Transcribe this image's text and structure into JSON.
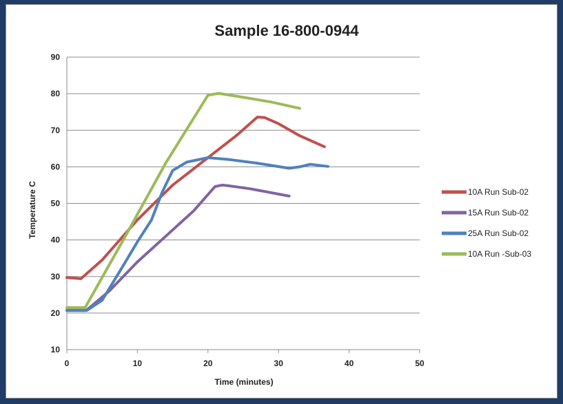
{
  "chart_data": {
    "type": "line",
    "title": "Sample 16-800-0944",
    "xlabel": "Time (minutes)",
    "ylabel": "Temperature C",
    "xlim": [
      0,
      50
    ],
    "ylim": [
      10,
      90
    ],
    "xticks": [
      "0",
      "10",
      "20",
      "30",
      "40",
      "50"
    ],
    "yticks": [
      "10",
      "20",
      "30",
      "40",
      "50",
      "60",
      "70",
      "80",
      "90"
    ],
    "grid": "horizontal",
    "legend_position": "right",
    "series": [
      {
        "name": "10A Run Sub-02",
        "color": "#c0504d",
        "points": [
          [
            0,
            29.7
          ],
          [
            2,
            29.4
          ],
          [
            5,
            34.5
          ],
          [
            10,
            45.5
          ],
          [
            15,
            55
          ],
          [
            20,
            62.5
          ],
          [
            24,
            68.5
          ],
          [
            27,
            73.6
          ],
          [
            28,
            73.5
          ],
          [
            30,
            71.8
          ],
          [
            33,
            68.5
          ],
          [
            36.5,
            65.5
          ]
        ]
      },
      {
        "name": "15A Run Sub-02",
        "color": "#8064a2",
        "points": [
          [
            0,
            20.8
          ],
          [
            2.8,
            20.8
          ],
          [
            6,
            26
          ],
          [
            10,
            34
          ],
          [
            14,
            41
          ],
          [
            18,
            48
          ],
          [
            21,
            54.6
          ],
          [
            22,
            55
          ],
          [
            23,
            54.8
          ],
          [
            26,
            54
          ],
          [
            31.5,
            52
          ]
        ]
      },
      {
        "name": "25A Run Sub-02",
        "color": "#4f81bd",
        "points": [
          [
            0,
            20.7
          ],
          [
            2.8,
            20.7
          ],
          [
            5,
            23.5
          ],
          [
            8,
            33
          ],
          [
            10,
            39.5
          ],
          [
            12,
            45.5
          ],
          [
            13.5,
            53
          ],
          [
            15,
            59
          ],
          [
            17,
            61.3
          ],
          [
            20,
            62.5
          ],
          [
            23,
            62
          ],
          [
            27,
            61
          ],
          [
            31.5,
            59.6
          ],
          [
            33,
            60
          ],
          [
            34.5,
            60.7
          ],
          [
            37,
            60.1
          ]
        ]
      },
      {
        "name": "10A Run -Sub-03",
        "color": "#9bbb59",
        "points": [
          [
            0,
            21.5
          ],
          [
            2.6,
            21.5
          ],
          [
            8,
            40
          ],
          [
            14,
            61
          ],
          [
            20,
            79.6
          ],
          [
            21.5,
            80.1
          ],
          [
            25,
            79
          ],
          [
            29,
            77.7
          ],
          [
            33,
            76
          ]
        ]
      }
    ]
  }
}
